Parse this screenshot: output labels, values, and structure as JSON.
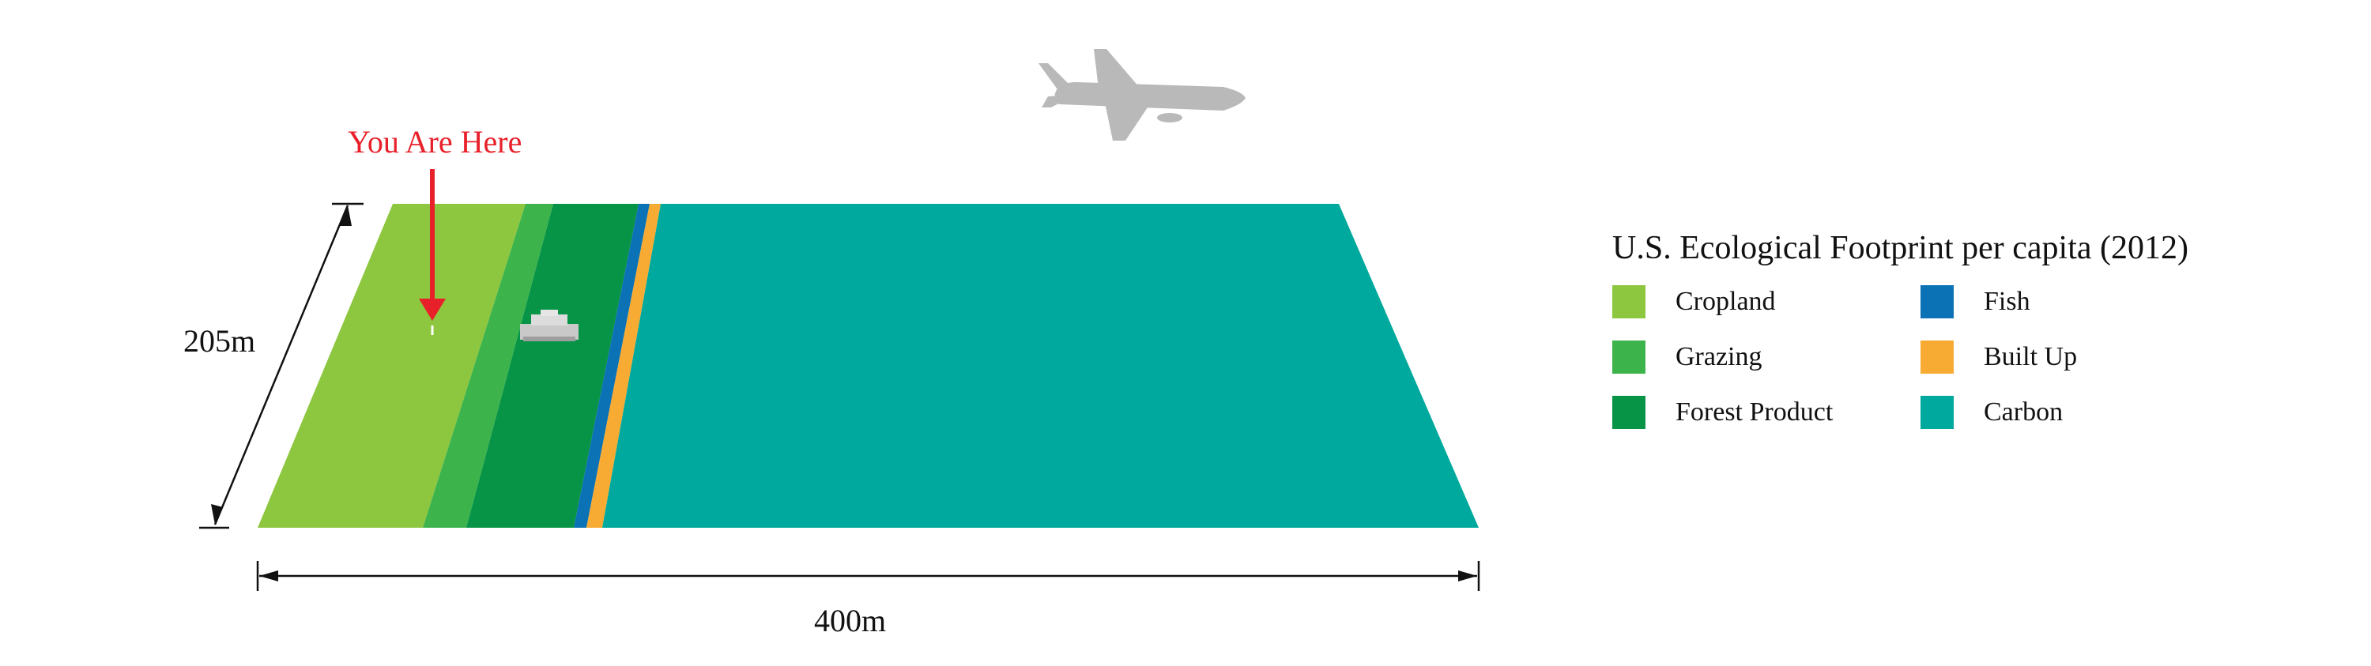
{
  "annotation": {
    "label": "You Are Here"
  },
  "dimensions": {
    "length": "400m",
    "width": "205m"
  },
  "legend": {
    "title": "U.S. Ecological Footprint per capita (2012)",
    "items": [
      {
        "label": "Cropland",
        "color": "#8dc63f",
        "icon": "cropland-swatch"
      },
      {
        "label": "Fish",
        "color": "#0b72b5",
        "icon": "fish-swatch"
      },
      {
        "label": "Grazing",
        "color": "#3cb44b",
        "icon": "grazing-swatch"
      },
      {
        "label": "Built Up",
        "color": "#f7ab33",
        "icon": "built-up-swatch"
      },
      {
        "label": "Forest Product",
        "color": "#079446",
        "icon": "forest-product-swatch"
      },
      {
        "label": "Carbon",
        "color": "#00a99d",
        "icon": "carbon-swatch"
      }
    ]
  },
  "icons": {
    "airplane": "airplane-icon",
    "building": "building-icon",
    "arrow": "arrow-down-icon"
  },
  "colors": {
    "accent": "#e8202a"
  }
}
